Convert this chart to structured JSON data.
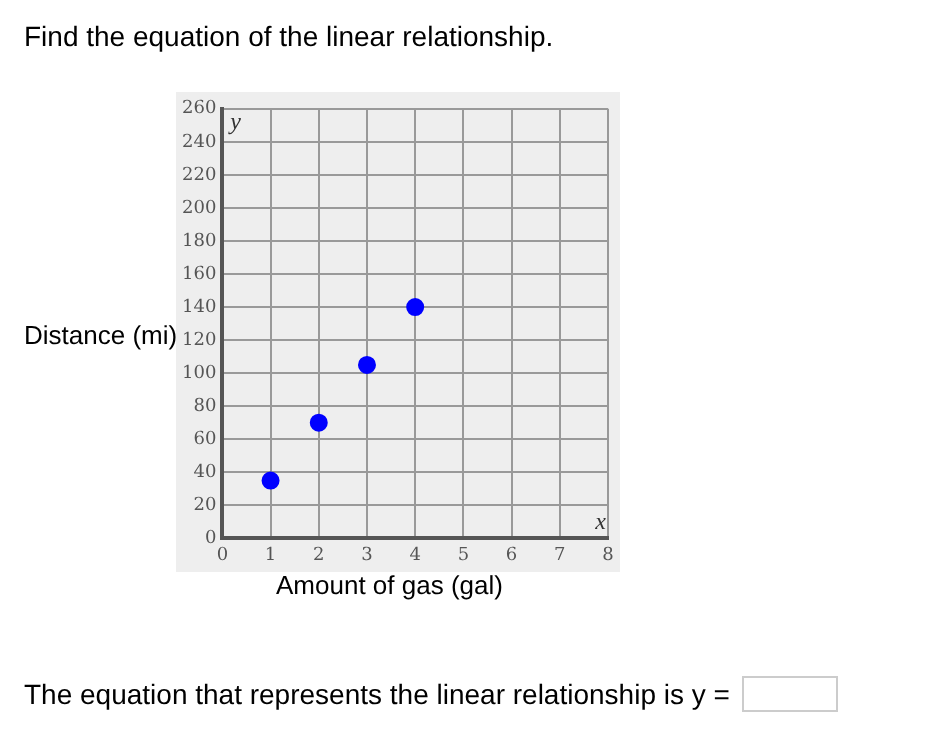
{
  "chart_data": {
    "type": "scatter",
    "title": "Find the equation of the linear relationship.",
    "xlabel": "Amount of gas (gal)",
    "ylabel": "Distance (mi)",
    "x": [
      1,
      2,
      3,
      4
    ],
    "series": [
      {
        "color": "#0000ff",
        "values": [
          35,
          70,
          105,
          140
        ]
      }
    ],
    "xlim": [
      0,
      8
    ],
    "xticks": [
      0,
      1,
      2,
      3,
      4,
      5,
      6,
      7,
      8
    ],
    "ylim": [
      0,
      260
    ],
    "yticks": [
      0,
      20,
      40,
      60,
      80,
      100,
      120,
      140,
      160,
      180,
      200,
      220,
      240,
      260
    ],
    "grid": true,
    "legend": false,
    "marker": "circle",
    "annotations": [
      "x",
      "y",
      "The equation that represents the linear relationship is y ="
    ]
  }
}
